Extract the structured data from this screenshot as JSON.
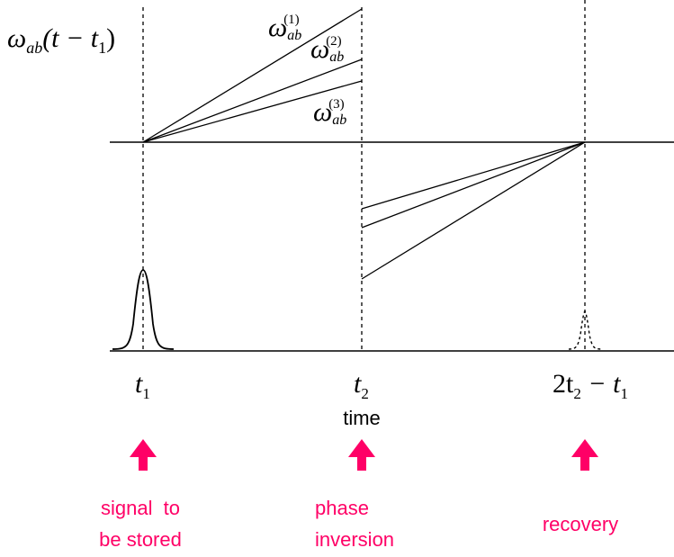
{
  "diagram": {
    "ylabel": {
      "omega": "ω",
      "sub": "ab",
      "rest": "(t − t",
      "sub1": "1",
      "close": ")"
    },
    "line_labels": [
      {
        "omega": "ω",
        "sub": "ab",
        "sup": "(1)"
      },
      {
        "omega": "ω",
        "sub": "ab",
        "sup": "(2)"
      },
      {
        "omega": "ω",
        "sub": "ab",
        "sup": "(3)"
      }
    ],
    "ticks": {
      "t1": {
        "main": "t",
        "sub": "1"
      },
      "t2": {
        "main": "t",
        "sub": "2"
      },
      "echo": {
        "pre": "2t",
        "sub2": "2",
        "mid": " − t",
        "sub1": "1"
      }
    },
    "xlabel": "time",
    "arrows": [
      {
        "line1": "signal  to",
        "line2": "be stored"
      },
      {
        "line1": "phase",
        "line2": "inversion"
      },
      {
        "line1": "recovery",
        "line2": ""
      }
    ],
    "colors": {
      "axis": "#000000",
      "accent": "#ff0066"
    }
  }
}
